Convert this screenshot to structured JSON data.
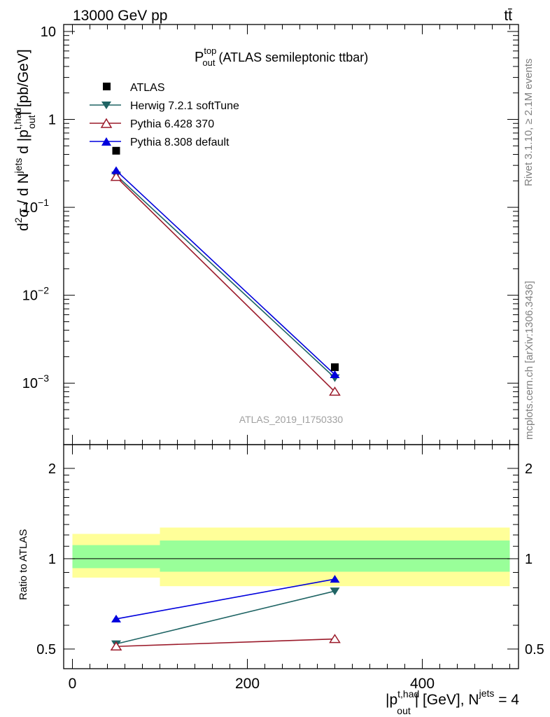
{
  "header": {
    "left": "13000 GeV pp",
    "right": "tt̄"
  },
  "side_text": {
    "rivet": "Rivet 3.1.10, ≥ 2.1M events",
    "mcplots": "mcplots.cern.ch [arXiv:1306.3436]"
  },
  "title": {
    "main": "P",
    "sup": "top",
    "sub": "out",
    "rest": " (ATLAS semileptonic ttbar)"
  },
  "watermark": "ATLAS_2019_I1750330",
  "ylabel_main": {
    "prefix": "d",
    "sup2": "2",
    "sigma": "σ / d N",
    "jets_sup": "jets",
    "mid": " d |p",
    "sup_thad": "t,had",
    "sub_out": "out",
    "suffix": "| [pb/GeV]"
  },
  "ylabel_ratio": "Ratio to ATLAS",
  "xlabel": {
    "prefix": "|p",
    "sup_thad": "t,had",
    "sub_out": "out",
    "mid": "| [GeV], N",
    "jets_sup": "jets",
    "suffix": " = 4"
  },
  "colors": {
    "data": "#000000",
    "herwig": "#1f6464",
    "pythia6": "#9b1a2a",
    "pythia8": "#0000dd",
    "band_inner": "#99ff99",
    "band_outer": "#ffff99"
  },
  "chart_data": [
    {
      "type": "scatter",
      "panel": "main",
      "yscale": "log",
      "ylim": [
        0.0002,
        12
      ],
      "xlim": [
        -10,
        510
      ],
      "yticks": [
        {
          "value": 10,
          "base": "10",
          "exp": ""
        },
        {
          "value": 1,
          "base": "1",
          "exp": ""
        },
        {
          "value": 0.1,
          "base": "10",
          "exp": "−1"
        },
        {
          "value": 0.01,
          "base": "10",
          "exp": "−2"
        },
        {
          "value": 0.001,
          "base": "10",
          "exp": "−3"
        }
      ],
      "legend_position": "top-left",
      "series": [
        {
          "name": "ATLAS",
          "key": "data",
          "marker": "square",
          "x": [
            50,
            300
          ],
          "y": [
            0.44,
            0.00152
          ],
          "line": false
        },
        {
          "name": "Herwig 7.2.1 softTune",
          "key": "herwig",
          "marker": "triangle-down",
          "x": [
            50,
            300
          ],
          "y": [
            0.232,
            0.00115
          ],
          "line": true
        },
        {
          "name": "Pythia 6.428 370",
          "key": "pythia6",
          "marker": "triangle-up-open",
          "x": [
            50,
            300
          ],
          "y": [
            0.222,
            0.0008
          ],
          "line": true
        },
        {
          "name": "Pythia 8.308 default",
          "key": "pythia8",
          "marker": "triangle-up",
          "x": [
            50,
            300
          ],
          "y": [
            0.262,
            0.00125
          ],
          "line": true
        }
      ]
    },
    {
      "type": "scatter",
      "panel": "ratio",
      "yscale": "log",
      "ylim": [
        0.43,
        2.4
      ],
      "xlim": [
        -10,
        510
      ],
      "ylabel": "Ratio to ATLAS",
      "yticks": [
        {
          "value": 2,
          "label": "2"
        },
        {
          "value": 1,
          "label": "1"
        },
        {
          "value": 0.5,
          "label": "0.5"
        }
      ],
      "xticks": [
        {
          "value": 0,
          "label": "0"
        },
        {
          "value": 200,
          "label": "200"
        },
        {
          "value": 400,
          "label": "400"
        }
      ],
      "bands": [
        {
          "x0": 0,
          "x1": 100,
          "inner": [
            0.93,
            1.11
          ],
          "outer": [
            0.865,
            1.21
          ]
        },
        {
          "x0": 100,
          "x1": 500,
          "inner": [
            0.905,
            1.15
          ],
          "outer": [
            0.81,
            1.27
          ]
        }
      ],
      "series": [
        {
          "name": "Herwig 7.2.1 softTune",
          "key": "herwig",
          "marker": "triangle-down",
          "x": [
            50,
            300
          ],
          "y": [
            0.52,
            0.78
          ]
        },
        {
          "name": "Pythia 6.428 370",
          "key": "pythia6",
          "marker": "triangle-up-open",
          "x": [
            50,
            300
          ],
          "y": [
            0.51,
            0.54
          ]
        },
        {
          "name": "Pythia 8.308 default",
          "key": "pythia8",
          "marker": "triangle-up",
          "x": [
            50,
            300
          ],
          "y": [
            0.63,
            0.855
          ]
        }
      ]
    }
  ]
}
